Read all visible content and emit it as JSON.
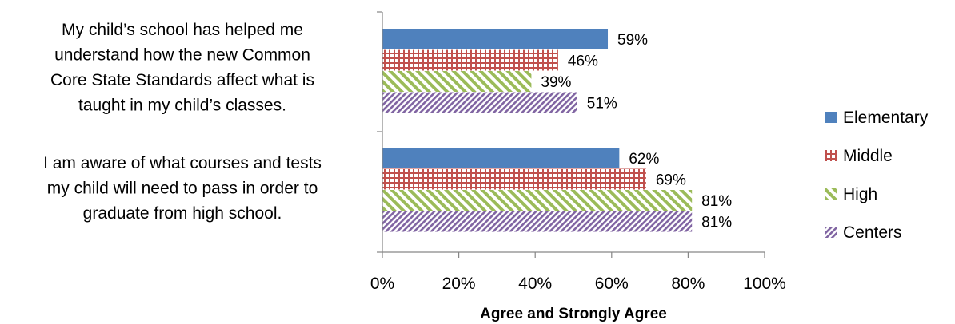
{
  "chart_data": {
    "type": "bar",
    "orientation": "horizontal",
    "title": "",
    "xlabel": "Agree and Strongly Agree",
    "ylabel": "",
    "xlim": [
      0,
      100
    ],
    "x_ticks": [
      "0%",
      "20%",
      "40%",
      "60%",
      "80%",
      "100%"
    ],
    "value_format": "percent",
    "categories": [
      "My child’s school has helped me understand how the new Common Core State Standards affect what is taught in my child’s classes.",
      "I am aware of what courses and tests my child will need to pass in order to graduate from high school."
    ],
    "category_lines": [
      [
        "My child’s school has helped me",
        "understand how the new Common",
        "Core State Standards affect what is",
        "taught in my child’s classes."
      ],
      [
        "I am aware of what courses and tests",
        "my child will need to pass in order to",
        "graduate from high school."
      ]
    ],
    "series": [
      {
        "name": "Elementary",
        "values": [
          59,
          62
        ],
        "labels": [
          "59%",
          "62%"
        ],
        "color": "#4f81bd",
        "pattern": "solid"
      },
      {
        "name": "Middle",
        "values": [
          46,
          69
        ],
        "labels": [
          "46%",
          "69%"
        ],
        "color": "#c0504d",
        "pattern": "grid"
      },
      {
        "name": "High",
        "values": [
          39,
          81
        ],
        "labels": [
          "39%",
          "81%"
        ],
        "color": "#9bbb59",
        "pattern": "diagonal-wide"
      },
      {
        "name": "Centers",
        "values": [
          51,
          81
        ],
        "labels": [
          "51%",
          "81%"
        ],
        "color": "#8064a2",
        "pattern": "diagonal-narrow"
      }
    ],
    "grid": false,
    "legend_position": "right"
  }
}
